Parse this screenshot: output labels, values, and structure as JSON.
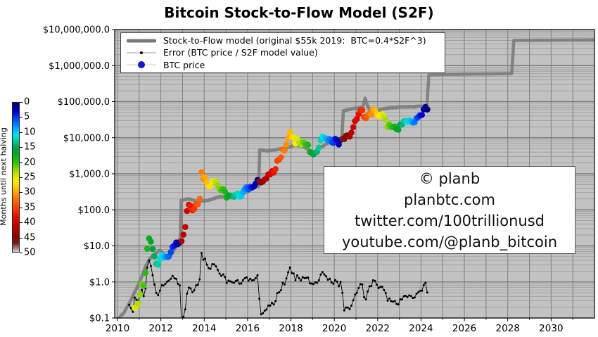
{
  "title": "Bitcoin Stock-to-Flow Model (S2F)",
  "legend": {
    "items": [
      {
        "id": "model",
        "label": "Stock-to-Flow model (original $55k 2019:  BTC=0.4*S2F^3)"
      },
      {
        "id": "error",
        "label": "Error (BTC price / S2F model value)"
      },
      {
        "id": "btc",
        "label": "BTC price"
      }
    ]
  },
  "watermark": {
    "lines": [
      "© planb",
      "planbtc.com",
      "twitter.com/100trillionusd",
      "youtube.com/@planb_bitcoin"
    ]
  },
  "colorbar": {
    "label": "Months until next halving",
    "min": 0,
    "max": 50,
    "ticks": [
      0,
      5,
      10,
      15,
      20,
      25,
      30,
      35,
      40,
      45,
      50
    ],
    "stops": [
      [
        0,
        "#00006f"
      ],
      [
        3,
        "#0000cd"
      ],
      [
        6,
        "#0055ff"
      ],
      [
        9,
        "#00b4ff"
      ],
      [
        11,
        "#00e4e0"
      ],
      [
        13,
        "#00c896"
      ],
      [
        15,
        "#00a050"
      ],
      [
        17,
        "#00a81e"
      ],
      [
        20,
        "#2bc20b"
      ],
      [
        22,
        "#7fd400"
      ],
      [
        24,
        "#c3e000"
      ],
      [
        26,
        "#f7ef00"
      ],
      [
        28,
        "#ffd000"
      ],
      [
        30,
        "#ffa500"
      ],
      [
        33,
        "#ff6400"
      ],
      [
        36,
        "#f53200"
      ],
      [
        39,
        "#e00000"
      ],
      [
        42,
        "#b80000"
      ],
      [
        45,
        "#8b0000"
      ],
      [
        47,
        "#6e2020"
      ],
      [
        48.5,
        "#93706e"
      ],
      [
        50,
        "#d8d2d2"
      ]
    ]
  },
  "axes": {
    "y_ticks": [
      {
        "label": "$10,000,000.0",
        "value": 10000000
      },
      {
        "label": "$1,000,000.0",
        "value": 1000000
      },
      {
        "label": "$100,000.0",
        "value": 100000
      },
      {
        "label": "$10,000.0",
        "value": 10000
      },
      {
        "label": "$1,000.0",
        "value": 1000
      },
      {
        "label": "$100.0",
        "value": 100
      },
      {
        "label": "$10.0",
        "value": 10
      },
      {
        "label": "$1.0",
        "value": 1
      },
      {
        "label": "$0.1",
        "value": 0.1
      }
    ],
    "x_ticks": [
      2010,
      2012,
      2014,
      2016,
      2018,
      2020,
      2022,
      2024,
      2026,
      2028,
      2030
    ],
    "x_range": [
      2009.87,
      2032.0
    ],
    "y_range": [
      0.1,
      10000000
    ]
  },
  "colors": {
    "figure_bg": "#ffffff",
    "plot_bg": "#c2c2c2",
    "grid_minor": "#8f8f8f",
    "grid_major": "#6f6f6f",
    "grid_vertical": "#7f7f7f",
    "frame": "#000000",
    "model_line": "#7a7a7a",
    "error_line": "#000000",
    "legend_btc_dot": "#1515cc"
  },
  "chart_data": {
    "type": "line+scatter",
    "title": "Bitcoin Stock-to-Flow Model (S2F)",
    "xlabel": "",
    "ylabel": "",
    "xlim": [
      2009.87,
      2032.0
    ],
    "ylim": [
      0.1,
      10000000
    ],
    "y_scale": "log",
    "grid": true,
    "legend_position": "upper left",
    "halvings": [
      2012.917,
      2016.525,
      2020.37,
      2024.3,
      2028.28
    ],
    "model_series": {
      "name": "Stock-to-Flow model (original $55k 2019:  BTC=0.4*S2F^3)",
      "type": "line",
      "points": [
        [
          2009.95,
          0.085
        ],
        [
          2010.3,
          0.14
        ],
        [
          2010.6,
          0.3
        ],
        [
          2010.9,
          0.7
        ],
        [
          2011.1,
          1.3
        ],
        [
          2011.3,
          2.8
        ],
        [
          2011.5,
          4.5
        ],
        [
          2011.7,
          6.0
        ],
        [
          2011.95,
          7.5
        ],
        [
          2012.15,
          6.0
        ],
        [
          2012.35,
          4.5
        ],
        [
          2012.55,
          6.5
        ],
        [
          2012.7,
          10
        ],
        [
          2012.9,
          17
        ],
        [
          2012.94,
          185
        ],
        [
          2013.3,
          200
        ],
        [
          2013.7,
          170
        ],
        [
          2014.2,
          185
        ],
        [
          2014.7,
          230
        ],
        [
          2015.2,
          235
        ],
        [
          2015.7,
          260
        ],
        [
          2016.0,
          330
        ],
        [
          2016.3,
          400
        ],
        [
          2016.51,
          450
        ],
        [
          2016.56,
          4600
        ],
        [
          2016.9,
          4300
        ],
        [
          2017.3,
          4600
        ],
        [
          2017.8,
          5200
        ],
        [
          2018.2,
          6200
        ],
        [
          2018.6,
          5600
        ],
        [
          2018.9,
          4300
        ],
        [
          2019.1,
          3800
        ],
        [
          2019.4,
          5500
        ],
        [
          2019.7,
          7200
        ],
        [
          2020.0,
          8200
        ],
        [
          2020.34,
          8700
        ],
        [
          2020.42,
          56000
        ],
        [
          2020.7,
          61000
        ],
        [
          2021.0,
          66000
        ],
        [
          2021.3,
          68000
        ],
        [
          2021.42,
          125000
        ],
        [
          2021.52,
          80000
        ],
        [
          2021.65,
          58000
        ],
        [
          2021.9,
          53000
        ],
        [
          2022.2,
          62000
        ],
        [
          2022.6,
          68000
        ],
        [
          2023.0,
          70000
        ],
        [
          2023.5,
          72000
        ],
        [
          2024.0,
          74000
        ],
        [
          2024.27,
          76000
        ],
        [
          2024.36,
          560000
        ],
        [
          2026.0,
          580000
        ],
        [
          2028.18,
          600000
        ],
        [
          2028.28,
          5000000
        ],
        [
          2032.0,
          5150000
        ]
      ]
    },
    "btc_series": {
      "name": "BTC price",
      "type": "scatter",
      "color_by": "months_until_next_halving",
      "monthly": {
        "start_year": 2010,
        "start_month": 7,
        "prices": [
          0.06,
          0.06,
          0.06,
          0.19,
          0.21,
          0.25,
          0.45,
          0.86,
          0.79,
          1.78,
          8.3,
          16.1,
          13.1,
          8.2,
          5.1,
          3.2,
          3.0,
          4.3,
          5.5,
          4.9,
          4.9,
          5.0,
          5.1,
          6.7,
          9.4,
          10.2,
          12.4,
          11.2,
          12.6,
          13.5,
          20.4,
          33.4,
          93,
          139,
          128,
          97,
          106,
          141,
          141,
          204,
          1113,
          732,
          800,
          550,
          450,
          445,
          620,
          635,
          580,
          480,
          390,
          340,
          375,
          320,
          218,
          254,
          244,
          236,
          230,
          263,
          284,
          230,
          236,
          314,
          377,
          430,
          368,
          437,
          416,
          448,
          531,
          673,
          624,
          575,
          610,
          700,
          745,
          963,
          970,
          1180,
          1080,
          1350,
          2300,
          2480,
          2875,
          4700,
          4360,
          6450,
          9900,
          14100,
          10200,
          10300,
          6930,
          9240,
          7500,
          6400,
          7730,
          7030,
          6600,
          6300,
          4020,
          3740,
          3460,
          3850,
          4100,
          5350,
          8570,
          10800,
          10000,
          9600,
          8300,
          9150,
          7550,
          7200,
          9350,
          8600,
          6440,
          8630,
          9450,
          9140,
          11350,
          11650,
          10780,
          13800,
          19700,
          29000,
          33100,
          45200,
          58800,
          57750,
          37300,
          35000,
          41500,
          47100,
          43800,
          61300,
          57000,
          46200,
          38500,
          43200,
          45500,
          37700,
          31800,
          19900,
          23300,
          20050,
          19400,
          20500,
          17150,
          16550,
          23100,
          23150,
          28500,
          29250,
          27200,
          30450,
          29250,
          26000,
          26950,
          34650,
          37700,
          42250,
          42550,
          61200,
          71300,
          60600
        ]
      }
    },
    "error_series": {
      "name": "Error (BTC price / S2F model value)",
      "type": "line",
      "derived": "btc_price / model_value"
    }
  }
}
